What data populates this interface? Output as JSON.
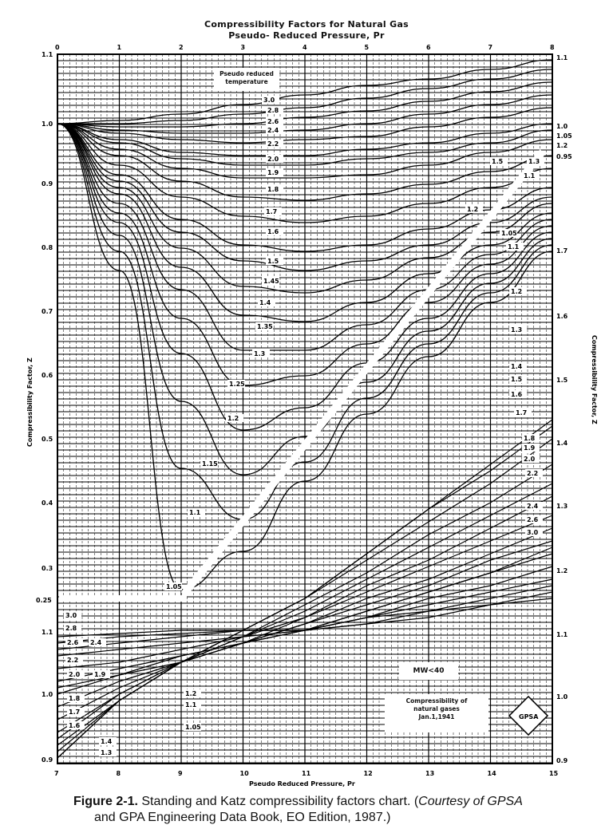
{
  "titles": {
    "main": "Compressibility Factors for Natural Gas",
    "top_axis": "Pseudo- Reduced Pressure, Pr"
  },
  "boxes": {
    "legend_title": "Pseudo reduced temperature",
    "mw": "MW<40",
    "note_line1": "Compressibility of",
    "note_line2": "natural gases",
    "note_line3": "Jan.1,1941",
    "logo": "GPSA"
  },
  "axes": {
    "left_label": "Compressibility Factor, Z",
    "right_label": "Compressibility Factor, Z",
    "bottom_label": "Pseudo Reduced Pressure, Pr",
    "top_ticks": [
      "0",
      "1",
      "2",
      "3",
      "4",
      "5",
      "6",
      "7",
      "8"
    ],
    "bottom_ticks": [
      "7",
      "8",
      "9",
      "10",
      "11",
      "12",
      "13",
      "14",
      "15"
    ],
    "left_ticks_upper": [
      "1.1",
      "1.0",
      "0.9",
      "0.8",
      "0.7",
      "0.6",
      "0.5",
      "0.4",
      "0.3",
      "0.25"
    ],
    "left_ticks_lower": [
      "1.1",
      "1.0",
      "0.9"
    ],
    "right_ticks": [
      "1.1",
      "1.0",
      "1.05",
      "1.2",
      "0.95",
      "1.7",
      "1.6",
      "1.5",
      "1.4",
      "1.3",
      "1.2",
      "1.1",
      "1.0",
      "0.9"
    ]
  },
  "caption": {
    "figure": "Figure 2-1.",
    "text": " Standing and Katz compressibility factors chart. (",
    "courtesy": "Courtesy of GPSA",
    "line2": "and GPA Engineering Data Book, EO Edition, 1987.)"
  },
  "chart_data": {
    "type": "line",
    "title": "Compressibility Factors for Natural Gas",
    "subtitle": "Pseudo- Reduced Pressure, Pr",
    "xlabel": "Pseudo Reduced Pressure, Pr",
    "ylabel": "Compressibility Factor, Z",
    "panels": [
      {
        "name": "low-pressure (top axis)",
        "xlim": [
          0,
          8
        ],
        "ylim": [
          0.25,
          1.1
        ],
        "x": [
          0,
          1,
          2,
          3,
          4,
          5,
          6,
          7,
          8
        ],
        "series": [
          {
            "name": "Tpr 3.0",
            "values": [
              1.0,
              1.005,
              1.015,
              1.03,
              1.045,
              1.06,
              1.07,
              1.085,
              1.1
            ]
          },
          {
            "name": "Tpr 2.8",
            "values": [
              1.0,
              1.0,
              1.005,
              1.015,
              1.025,
              1.04,
              1.055,
              1.07,
              1.085
            ]
          },
          {
            "name": "Tpr 2.6",
            "values": [
              1.0,
              0.995,
              0.995,
              1.0,
              1.01,
              1.02,
              1.035,
              1.05,
              1.065
            ]
          },
          {
            "name": "Tpr 2.4",
            "values": [
              1.0,
              0.99,
              0.985,
              0.985,
              0.99,
              1.0,
              1.015,
              1.03,
              1.045
            ]
          },
          {
            "name": "Tpr 2.2",
            "values": [
              1.0,
              0.985,
              0.975,
              0.97,
              0.975,
              0.98,
              0.995,
              1.01,
              1.025
            ]
          },
          {
            "name": "Tpr 2.0",
            "values": [
              1.0,
              0.975,
              0.955,
              0.95,
              0.95,
              0.96,
              0.97,
              0.985,
              1.0
            ]
          },
          {
            "name": "Tpr 1.9",
            "values": [
              1.0,
              0.97,
              0.945,
              0.935,
              0.935,
              0.945,
              0.955,
              0.97,
              0.99
            ]
          },
          {
            "name": "Tpr 1.8",
            "values": [
              1.0,
              0.96,
              0.93,
              0.915,
              0.915,
              0.92,
              0.935,
              0.955,
              0.975
            ]
          },
          {
            "name": "Tpr 1.7",
            "values": [
              1.0,
              0.95,
              0.91,
              0.885,
              0.88,
              0.89,
              0.905,
              0.925,
              0.95
            ]
          },
          {
            "name": "Tpr 1.6",
            "values": [
              1.0,
              0.935,
              0.885,
              0.855,
              0.845,
              0.855,
              0.875,
              0.9,
              0.93
            ]
          },
          {
            "name": "Tpr 1.5",
            "values": [
              1.0,
              0.92,
              0.85,
              0.81,
              0.8,
              0.81,
              0.835,
              0.865,
              0.9
            ]
          },
          {
            "name": "Tpr 1.45",
            "values": [
              1.0,
              0.91,
              0.83,
              0.785,
              0.77,
              0.785,
              0.81,
              0.845,
              0.885
            ]
          },
          {
            "name": "Tpr 1.4",
            "values": [
              1.0,
              0.9,
              0.805,
              0.745,
              0.735,
              0.755,
              0.79,
              0.83,
              0.875
            ]
          },
          {
            "name": "Tpr 1.35",
            "values": [
              1.0,
              0.89,
              0.775,
              0.7,
              0.69,
              0.72,
              0.765,
              0.81,
              0.86
            ]
          },
          {
            "name": "Tpr 1.3",
            "values": [
              1.0,
              0.875,
              0.74,
              0.645,
              0.645,
              0.685,
              0.74,
              0.795,
              0.85
            ]
          },
          {
            "name": "Tpr 1.25",
            "values": [
              1.0,
              0.86,
              0.695,
              0.59,
              0.605,
              0.655,
              0.72,
              0.78,
              0.84
            ]
          },
          {
            "name": "Tpr 1.2",
            "values": [
              1.0,
              0.845,
              0.64,
              0.52,
              0.555,
              0.625,
              0.695,
              0.765,
              0.83
            ]
          },
          {
            "name": "Tpr 1.15",
            "values": [
              1.0,
              0.825,
              0.565,
              0.45,
              0.51,
              0.595,
              0.675,
              0.75,
              0.82
            ]
          },
          {
            "name": "Tpr 1.1",
            "values": [
              1.0,
              0.8,
              0.46,
              0.38,
              0.47,
              0.57,
              0.655,
              0.735,
              0.81
            ]
          },
          {
            "name": "Tpr 1.05",
            "values": [
              1.0,
              0.77,
              0.27,
              0.33,
              0.44,
              0.545,
              0.635,
              0.72,
              0.8
            ]
          }
        ]
      },
      {
        "name": "high-pressure (bottom axis)",
        "xlim": [
          7,
          15
        ],
        "ylim": [
          0.9,
          1.1
        ],
        "x": [
          7,
          8,
          9,
          10,
          11,
          12,
          13,
          14,
          15
        ],
        "series": [
          {
            "name": "Tpr 1.05",
            "values": [
              0.9,
              0.99,
              1.05,
              1.1,
              1.15,
              1.22,
              1.29,
              1.35,
              1.42
            ]
          },
          {
            "name": "Tpr 1.1",
            "values": [
              0.9,
              0.99,
              1.05,
              1.1,
              1.15,
              1.22,
              1.29,
              1.36,
              1.43
            ]
          },
          {
            "name": "Tpr 1.2",
            "values": [
              0.91,
              0.99,
              1.05,
              1.1,
              1.15,
              1.21,
              1.27,
              1.33,
              1.4
            ]
          },
          {
            "name": "Tpr 1.3",
            "values": [
              0.92,
              0.99,
              1.05,
              1.09,
              1.14,
              1.19,
              1.25,
              1.3,
              1.36
            ]
          },
          {
            "name": "Tpr 1.4",
            "values": [
              0.93,
              1.0,
              1.05,
              1.09,
              1.13,
              1.18,
              1.23,
              1.28,
              1.33
            ]
          },
          {
            "name": "Tpr 1.5",
            "values": [
              0.94,
              1.0,
              1.05,
              1.09,
              1.12,
              1.17,
              1.21,
              1.26,
              1.31
            ]
          },
          {
            "name": "Tpr 1.6",
            "values": [
              0.96,
              1.01,
              1.05,
              1.08,
              1.12,
              1.16,
              1.2,
              1.24,
              1.28
            ]
          },
          {
            "name": "Tpr 1.7",
            "values": [
              0.98,
              1.02,
              1.05,
              1.08,
              1.11,
              1.15,
              1.18,
              1.22,
              1.26
            ]
          },
          {
            "name": "Tpr 1.8",
            "values": [
              1.0,
              1.03,
              1.05,
              1.08,
              1.11,
              1.14,
              1.17,
              1.21,
              1.24
            ]
          },
          {
            "name": "Tpr 1.9",
            "values": [
              1.01,
              1.03,
              1.06,
              1.08,
              1.1,
              1.13,
              1.16,
              1.19,
              1.23
            ]
          },
          {
            "name": "Tpr 2.0",
            "values": [
              1.02,
              1.04,
              1.06,
              1.08,
              1.1,
              1.13,
              1.16,
              1.19,
              1.22
            ]
          },
          {
            "name": "Tpr 2.2",
            "values": [
              1.04,
              1.05,
              1.07,
              1.09,
              1.1,
              1.12,
              1.15,
              1.17,
              1.2
            ]
          },
          {
            "name": "Tpr 2.4",
            "values": [
              1.06,
              1.07,
              1.08,
              1.09,
              1.1,
              1.12,
              1.14,
              1.16,
              1.18
            ]
          },
          {
            "name": "Tpr 2.6",
            "values": [
              1.07,
              1.08,
              1.09,
              1.1,
              1.1,
              1.12,
              1.13,
              1.15,
              1.17
            ]
          },
          {
            "name": "Tpr 2.8",
            "values": [
              1.08,
              1.09,
              1.095,
              1.1,
              1.1,
              1.11,
              1.13,
              1.14,
              1.16
            ]
          },
          {
            "name": "Tpr 3.0",
            "values": [
              1.09,
              1.095,
              1.1,
              1.1,
              1.1,
              1.11,
              1.12,
              1.14,
              1.15
            ]
          }
        ]
      }
    ],
    "legend": "Pseudo reduced temperature",
    "annotations": [
      "MW<40",
      "Compressibility of natural gases Jan.1,1941",
      "GPSA"
    ],
    "grid": true
  }
}
